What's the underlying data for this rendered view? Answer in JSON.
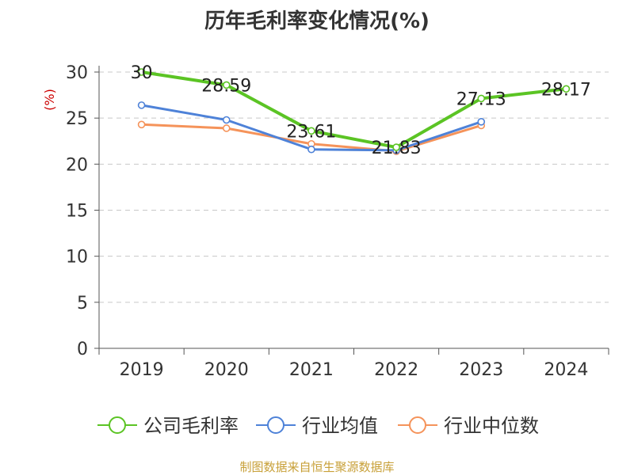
{
  "chart_data": {
    "type": "line",
    "title": "历年毛利率变化情况(%)",
    "ylabel": "(%)",
    "categories": [
      "2019",
      "2020",
      "2021",
      "2022",
      "2023",
      "2024"
    ],
    "ylim": [
      0,
      30
    ],
    "yticks": [
      "0",
      "5",
      "10",
      "15",
      "20",
      "25",
      "30"
    ],
    "grid": true,
    "legend_position": "bottom",
    "series": [
      {
        "name": "公司毛利率",
        "color": "#5bc424",
        "values": [
          30,
          28.59,
          23.61,
          21.83,
          27.13,
          28.17
        ],
        "labels": [
          "30",
          "28.59",
          "23.61",
          "21.83",
          "27.13",
          "28.17"
        ]
      },
      {
        "name": "行业均值",
        "color": "#4e82d8",
        "values": [
          26.4,
          24.8,
          21.6,
          21.5,
          24.6,
          null
        ]
      },
      {
        "name": "行业中位数",
        "color": "#f5935a",
        "values": [
          24.3,
          23.9,
          22.2,
          21.4,
          24.2,
          null
        ]
      }
    ],
    "ylabel_color": "#cc0000"
  },
  "footer": {
    "source": "制图数据来自恒生聚源数据库"
  }
}
